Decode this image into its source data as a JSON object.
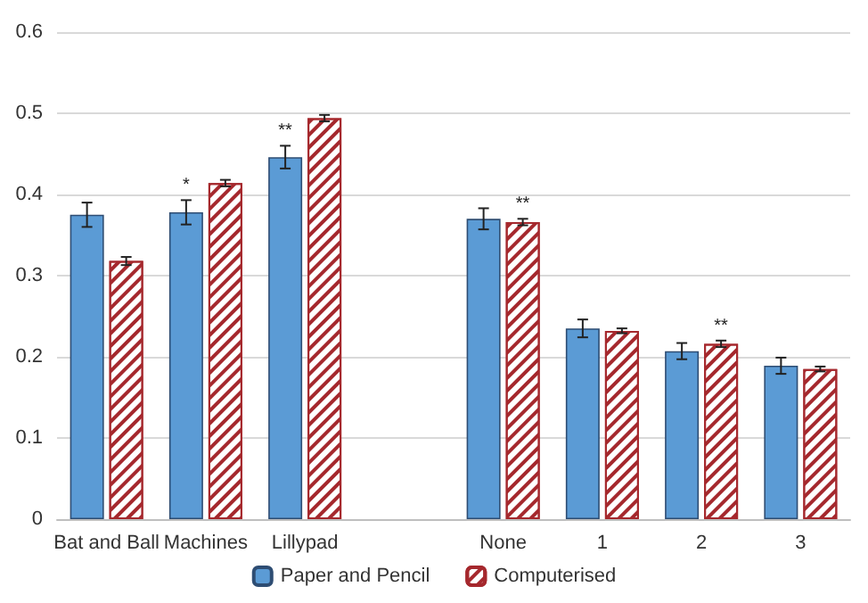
{
  "chart_data": {
    "type": "bar",
    "categories": [
      "Bat and Ball",
      "Machines",
      "Lillypad",
      null,
      "None",
      "1",
      "2",
      "3"
    ],
    "series": [
      {
        "name": "Paper and Pencil",
        "color": "#5b9bd5",
        "values": [
          0.375,
          0.378,
          0.446,
          null,
          0.37,
          0.235,
          0.207,
          0.189
        ],
        "errors": [
          0.015,
          0.015,
          0.014,
          null,
          0.013,
          0.011,
          0.01,
          0.01
        ]
      },
      {
        "name": "Computerised",
        "color": "#a5282d",
        "values": [
          0.318,
          0.414,
          0.494,
          null,
          0.366,
          0.232,
          0.216,
          0.185
        ],
        "errors": [
          0.005,
          0.004,
          0.004,
          null,
          0.004,
          0.003,
          0.004,
          0.003
        ]
      }
    ],
    "ylim": [
      0,
      0.6
    ],
    "yticks": [
      0,
      0.1,
      0.2,
      0.3,
      0.4,
      0.5,
      0.6
    ],
    "grid": "y",
    "legend": "bottom",
    "annotations": [
      {
        "text": "*",
        "x": "Machines",
        "y": 0.378
      },
      {
        "text": "**",
        "x": "Lillypad",
        "y": 0.446
      },
      {
        "text": "**",
        "x": "None",
        "y": 0.366
      },
      {
        "text": "**",
        "x": "2",
        "y": 0.216
      }
    ]
  }
}
